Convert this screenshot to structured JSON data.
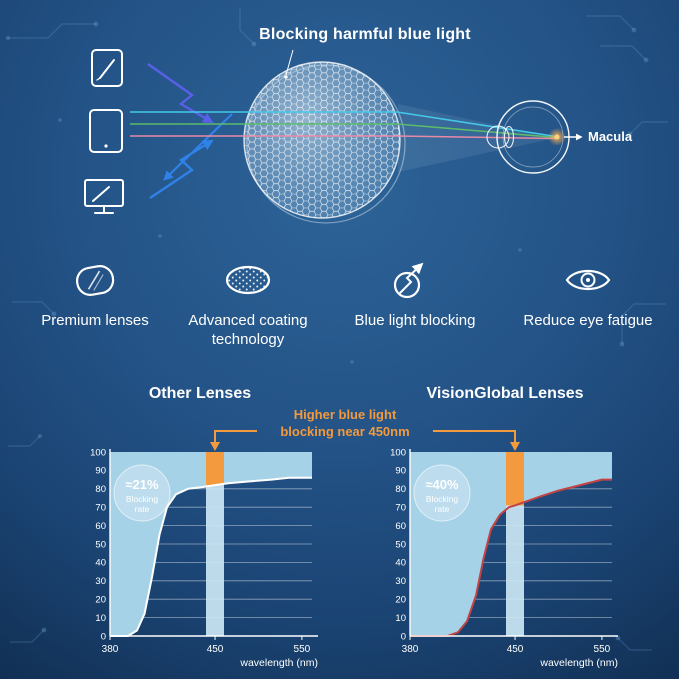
{
  "colors": {
    "background_top": "#2D6498",
    "background_bottom": "#0E2A4C",
    "accent_orange": "#F29A3D",
    "area_fill": "#A6D2E8",
    "band_fill": "#CBE7F5",
    "curve_other": "#FFFFFF",
    "curve_visionglobal": "#C24444",
    "text_white": "#FFFFFF"
  },
  "hero": {
    "title": "Blocking harmful blue light",
    "macula_label": "Macula"
  },
  "features": [
    {
      "icon": "premium-lens-icon",
      "label": "Premium lenses"
    },
    {
      "icon": "coating-technology-icon",
      "label": "Advanced coating technology"
    },
    {
      "icon": "blue-light-blocking-icon",
      "label": "Blue light blocking"
    },
    {
      "icon": "reduce-eye-fatigue-icon",
      "label": "Reduce eye fatigue"
    }
  ],
  "comparison": {
    "annotation_line1": "Higher blue light",
    "annotation_line2": "blocking near 450nm"
  },
  "chart_data": [
    {
      "type": "area",
      "title": "Other Lenses",
      "badge_value": "≈21%",
      "badge_label": "Blocking rate",
      "xlabel": "wavelength (nm)",
      "x_ticks": [
        380,
        450,
        550
      ],
      "y_ticks": [
        0,
        10,
        20,
        30,
        40,
        50,
        60,
        70,
        80,
        90,
        100
      ],
      "ylim": [
        0,
        100
      ],
      "xlim": [
        380,
        560
      ],
      "band_center_nm": 450,
      "curve_color": "#FFFFFF",
      "curve": [
        [
          380,
          0
        ],
        [
          392,
          0
        ],
        [
          398,
          3
        ],
        [
          403,
          12
        ],
        [
          408,
          32
        ],
        [
          413,
          55
        ],
        [
          418,
          70
        ],
        [
          424,
          77
        ],
        [
          432,
          80
        ],
        [
          442,
          81
        ],
        [
          450,
          82
        ],
        [
          465,
          83
        ],
        [
          490,
          84
        ],
        [
          515,
          85
        ],
        [
          535,
          86
        ],
        [
          550,
          86
        ]
      ]
    },
    {
      "type": "area",
      "title": "VisionGlobal Lenses",
      "badge_value": "≈40%",
      "badge_label": "Blocking rate",
      "xlabel": "wavelength (nm)",
      "x_ticks": [
        380,
        450,
        550
      ],
      "y_ticks": [
        0,
        10,
        20,
        30,
        40,
        50,
        60,
        70,
        80,
        90,
        100
      ],
      "ylim": [
        0,
        100
      ],
      "xlim": [
        380,
        560
      ],
      "band_center_nm": 450,
      "curve_color": "#C24444",
      "curve": [
        [
          380,
          0
        ],
        [
          405,
          0
        ],
        [
          412,
          2
        ],
        [
          418,
          8
        ],
        [
          424,
          22
        ],
        [
          429,
          42
        ],
        [
          434,
          58
        ],
        [
          440,
          66
        ],
        [
          446,
          70
        ],
        [
          450,
          71
        ],
        [
          462,
          73
        ],
        [
          480,
          76
        ],
        [
          500,
          79
        ],
        [
          525,
          82
        ],
        [
          550,
          85
        ]
      ]
    }
  ]
}
